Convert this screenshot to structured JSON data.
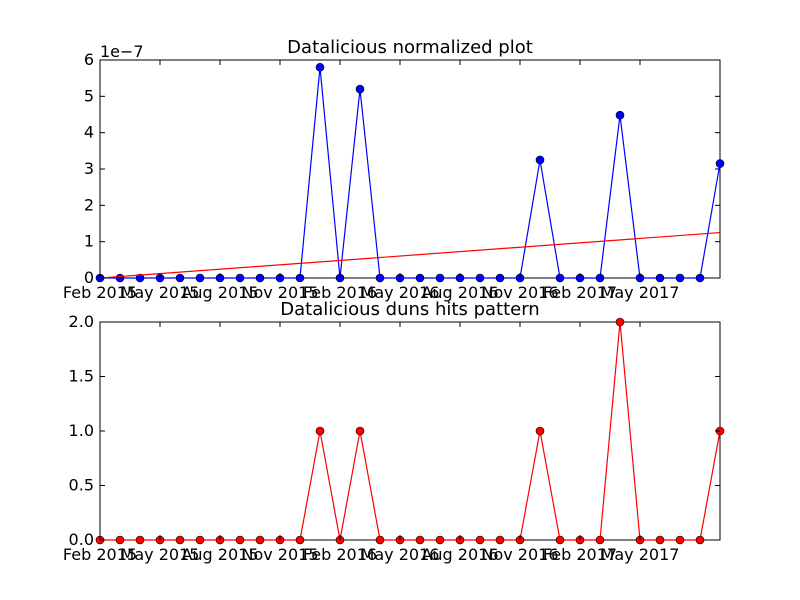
{
  "chart_data": [
    {
      "type": "line",
      "title": "Datalicious normalized plot",
      "multiplier_label": "1e−7",
      "xlim": [
        0,
        31
      ],
      "ylim": [
        0,
        6
      ],
      "y_ticks": [
        {
          "value": 0,
          "label": "0"
        },
        {
          "value": 1,
          "label": "1"
        },
        {
          "value": 2,
          "label": "2"
        },
        {
          "value": 3,
          "label": "3"
        },
        {
          "value": 4,
          "label": "4"
        },
        {
          "value": 5,
          "label": "5"
        },
        {
          "value": 6,
          "label": "6"
        }
      ],
      "x_ticks": [
        {
          "value": 0,
          "label": "Feb 2015"
        },
        {
          "value": 3,
          "label": "May 2015"
        },
        {
          "value": 6,
          "label": "Aug 2015"
        },
        {
          "value": 9,
          "label": "Nov 2015"
        },
        {
          "value": 12,
          "label": "Feb 2016"
        },
        {
          "value": 15,
          "label": "May 2016"
        },
        {
          "value": 18,
          "label": "Aug 2016"
        },
        {
          "value": 21,
          "label": "Nov 2016"
        },
        {
          "value": 24,
          "label": "Feb 2017"
        },
        {
          "value": 27,
          "label": "May 2017"
        }
      ],
      "series": [
        {
          "color": "#0000ff",
          "marker_color": "#0000ff",
          "x": [
            0,
            1,
            2,
            3,
            4,
            5,
            6,
            7,
            8,
            9,
            10,
            11,
            12,
            13,
            14,
            15,
            16,
            17,
            18,
            19,
            20,
            21,
            22,
            23,
            24,
            25,
            26,
            27,
            28,
            29,
            30,
            31
          ],
          "values": [
            0,
            0,
            0,
            0,
            0,
            0,
            0,
            0,
            0,
            0,
            0,
            5.8,
            0,
            5.2,
            0,
            0,
            0,
            0,
            0,
            0,
            0,
            0,
            3.25,
            0,
            0,
            0,
            4.48,
            0,
            0,
            0,
            0,
            3.15
          ]
        },
        {
          "type": "trend",
          "color": "#ff0000",
          "x": [
            0,
            31
          ],
          "values": [
            0,
            1.25
          ]
        }
      ]
    },
    {
      "type": "line",
      "title": "Datalicious duns hits pattern",
      "xlim": [
        0,
        31
      ],
      "ylim": [
        0,
        2
      ],
      "y_ticks": [
        {
          "value": 0,
          "label": "0.0"
        },
        {
          "value": 0.5,
          "label": "0.5"
        },
        {
          "value": 1,
          "label": "1.0"
        },
        {
          "value": 1.5,
          "label": "1.5"
        },
        {
          "value": 2,
          "label": "2.0"
        }
      ],
      "x_ticks": [
        {
          "value": 0,
          "label": "Feb 2015"
        },
        {
          "value": 3,
          "label": "May 2015"
        },
        {
          "value": 6,
          "label": "Aug 2015"
        },
        {
          "value": 9,
          "label": "Nov 2015"
        },
        {
          "value": 12,
          "label": "Feb 2016"
        },
        {
          "value": 15,
          "label": "May 2016"
        },
        {
          "value": 18,
          "label": "Aug 2016"
        },
        {
          "value": 21,
          "label": "Nov 2016"
        },
        {
          "value": 24,
          "label": "Feb 2017"
        },
        {
          "value": 27,
          "label": "May 2017"
        }
      ],
      "series": [
        {
          "color": "#ff0000",
          "marker_color": "#ff0000",
          "x": [
            0,
            1,
            2,
            3,
            4,
            5,
            6,
            7,
            8,
            9,
            10,
            11,
            12,
            13,
            14,
            15,
            16,
            17,
            18,
            19,
            20,
            21,
            22,
            23,
            24,
            25,
            26,
            27,
            28,
            29,
            30,
            31
          ],
          "values": [
            0,
            0,
            0,
            0,
            0,
            0,
            0,
            0,
            0,
            0,
            0,
            1,
            0,
            1,
            0,
            0,
            0,
            0,
            0,
            0,
            0,
            0,
            1,
            0,
            0,
            0,
            2,
            0,
            0,
            0,
            0,
            1
          ]
        }
      ]
    }
  ]
}
